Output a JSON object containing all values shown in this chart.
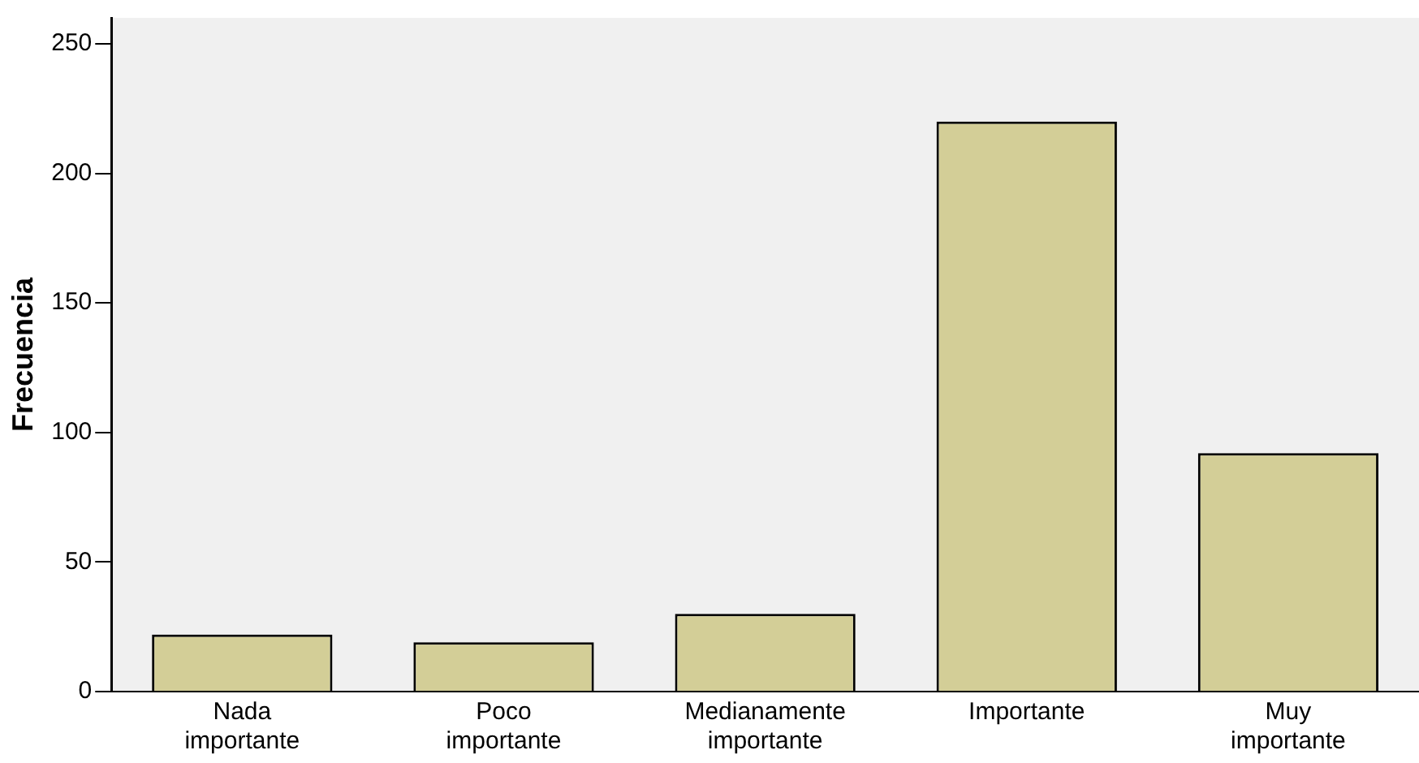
{
  "chart_data": {
    "type": "bar",
    "ylabel": "Frecuencia",
    "categories": [
      "Nada importante",
      "Poco importante",
      "Medianamente importante",
      "Importante",
      "Muy importante"
    ],
    "values": [
      22,
      19,
      30,
      220,
      92
    ],
    "color": "#d3ce97",
    "ylim": [
      0,
      260
    ],
    "yticks": [
      0,
      50,
      100,
      150,
      200,
      250
    ],
    "grid": false,
    "legend": false
  }
}
